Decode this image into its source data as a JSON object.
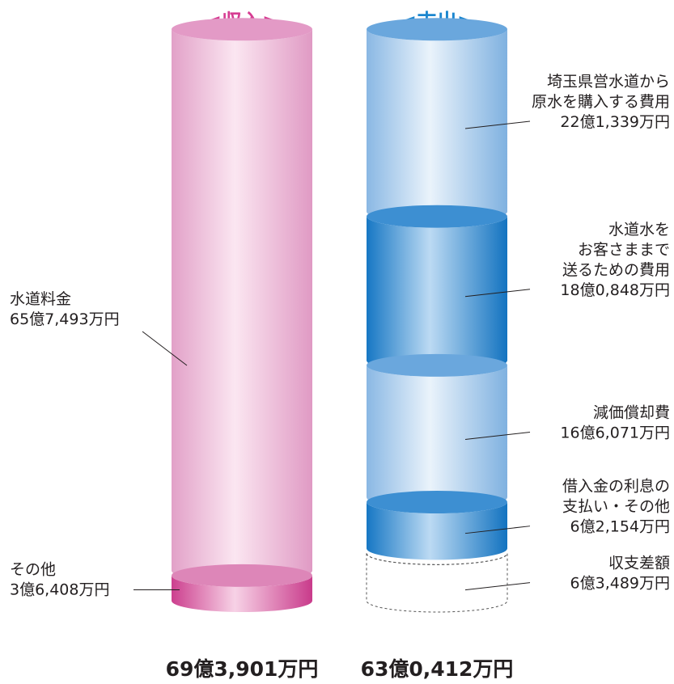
{
  "chart_data": {
    "type": "stacked-cylinder",
    "unit": "万円",
    "columns": [
      {
        "header": "<収入>",
        "header_color": "#d63c92",
        "total_label": "69億3,901万円",
        "segments": [
          {
            "name": "その他",
            "value_label": "3億6,408万円",
            "value": 36408,
            "style": "pink-dark"
          },
          {
            "name": "水道料金",
            "value_label": "65億7,493万円",
            "value": 657493,
            "style": "pink-light"
          }
        ]
      },
      {
        "header": "<支出>",
        "header_color": "#1b86cf",
        "total_label": "63億0,412万円",
        "segments": [
          {
            "name": "収支差額",
            "value_label": "6億3,489万円",
            "value": 63489,
            "style": "dashed"
          },
          {
            "name": "借入金の利息の支払い・その他",
            "lines": [
              "借入金の利息の",
              "支払い・その他"
            ],
            "value_label": "6億2,154万円",
            "value": 62154,
            "style": "blue-dark"
          },
          {
            "name": "減価償却費",
            "lines": [
              "減価償却費"
            ],
            "value_label": "16億6,071万円",
            "value": 166071,
            "style": "blue-light"
          },
          {
            "name": "水道水をお客さままで送るための費用",
            "lines": [
              "水道水を",
              "お客さままで",
              "送るための費用"
            ],
            "value_label": "18億0,848万円",
            "value": 180848,
            "style": "blue-dark"
          },
          {
            "name": "埼玉県営水道から原水を購入する費用",
            "lines": [
              "埼玉県営水道から",
              "原水を購入する費用"
            ],
            "value_label": "22億1,339万円",
            "value": 221339,
            "style": "blue-light"
          }
        ]
      }
    ]
  }
}
